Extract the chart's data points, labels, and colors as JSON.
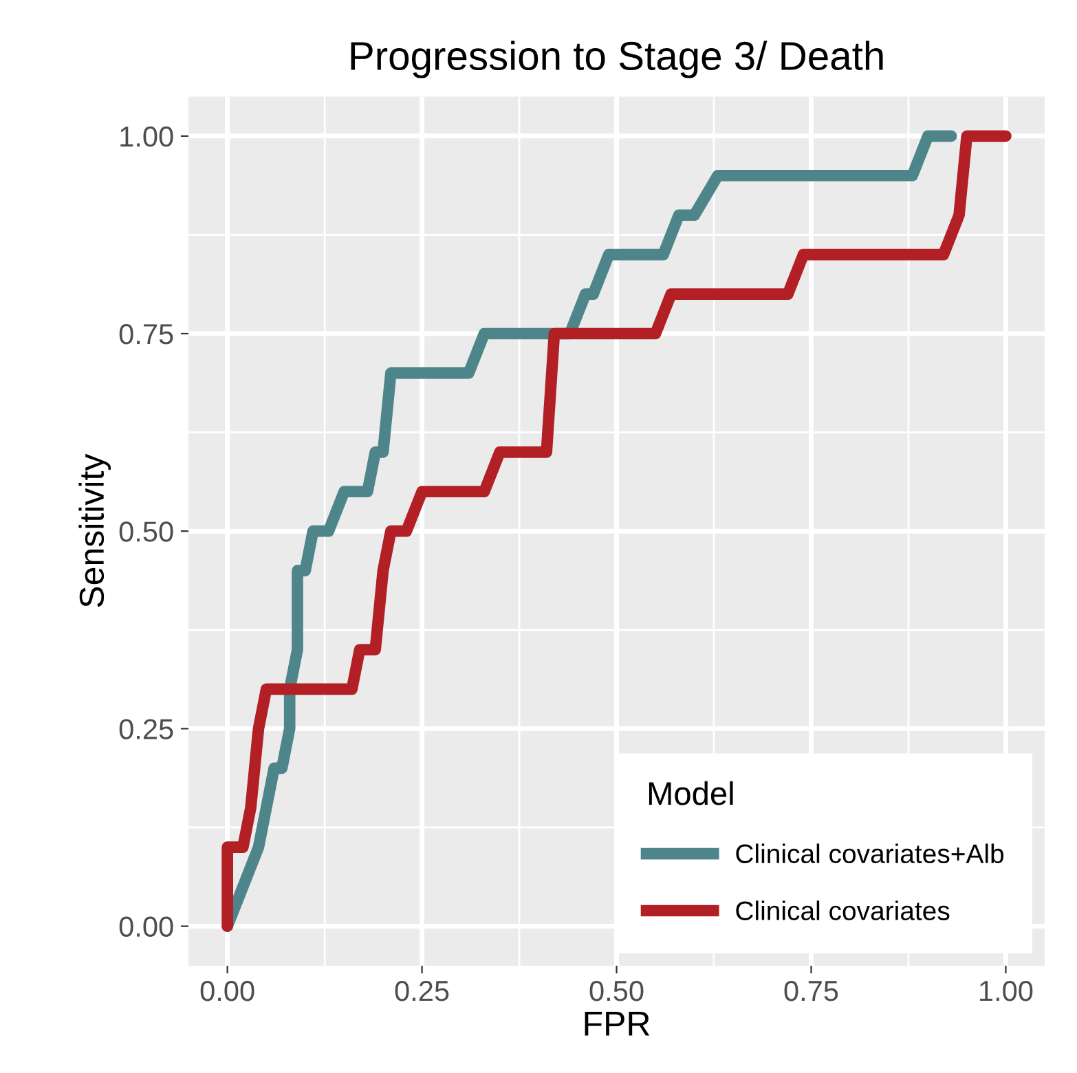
{
  "chart_data": {
    "type": "step",
    "title": "Progression to Stage 3/ Death",
    "xlabel": "FPR",
    "ylabel": "Sensitivity",
    "legend_title": "Model",
    "legend": "bottom right",
    "grid": true,
    "line_style": "solid",
    "xlim": [
      -0.05,
      1.05
    ],
    "ylim": [
      -0.05,
      1.05
    ],
    "xticks": [
      {
        "value": 0,
        "label": "0.00"
      },
      {
        "value": 0.25,
        "label": "0.25"
      },
      {
        "value": 0.5,
        "label": "0.50"
      },
      {
        "value": 0.75,
        "label": "0.75"
      },
      {
        "value": 1,
        "label": "1.00"
      }
    ],
    "yticks": [
      {
        "value": 0,
        "label": "0.00"
      },
      {
        "value": 0.25,
        "label": "0.25"
      },
      {
        "value": 0.5,
        "label": "0.50"
      },
      {
        "value": 0.75,
        "label": "0.75"
      },
      {
        "value": 1,
        "label": "1.00"
      }
    ],
    "series": [
      {
        "name": "Clinical covariates+Alb",
        "color": "#4e858a",
        "x": [
          0,
          0.02,
          0.04,
          0.05,
          0.06,
          0.07,
          0.08,
          0.08,
          0.09,
          0.09,
          0.1,
          0.11,
          0.13,
          0.15,
          0.18,
          0.19,
          0.2,
          0.21,
          0.31,
          0.33,
          0.44,
          0.46,
          0.47,
          0.49,
          0.56,
          0.58,
          0.6,
          0.63,
          0.88,
          0.9,
          0.93
        ],
        "values": [
          0,
          0.05,
          0.1,
          0.15,
          0.2,
          0.2,
          0.25,
          0.3,
          0.35,
          0.45,
          0.45,
          0.5,
          0.5,
          0.55,
          0.55,
          0.6,
          0.6,
          0.7,
          0.7,
          0.75,
          0.75,
          0.8,
          0.8,
          0.85,
          0.85,
          0.9,
          0.9,
          0.95,
          0.95,
          1.0,
          1.0
        ]
      },
      {
        "name": "Clinical covariates",
        "color": "#b22025",
        "x": [
          0,
          0,
          0.02,
          0.03,
          0.035,
          0.04,
          0.05,
          0.16,
          0.17,
          0.19,
          0.2,
          0.21,
          0.23,
          0.25,
          0.33,
          0.35,
          0.41,
          0.42,
          0.55,
          0.57,
          0.72,
          0.74,
          0.92,
          0.94,
          0.95,
          1.0
        ],
        "values": [
          0,
          0.1,
          0.1,
          0.15,
          0.2,
          0.25,
          0.3,
          0.3,
          0.35,
          0.35,
          0.45,
          0.5,
          0.5,
          0.55,
          0.55,
          0.6,
          0.6,
          0.75,
          0.75,
          0.8,
          0.8,
          0.85,
          0.85,
          0.9,
          1.0,
          1.0
        ]
      }
    ]
  }
}
